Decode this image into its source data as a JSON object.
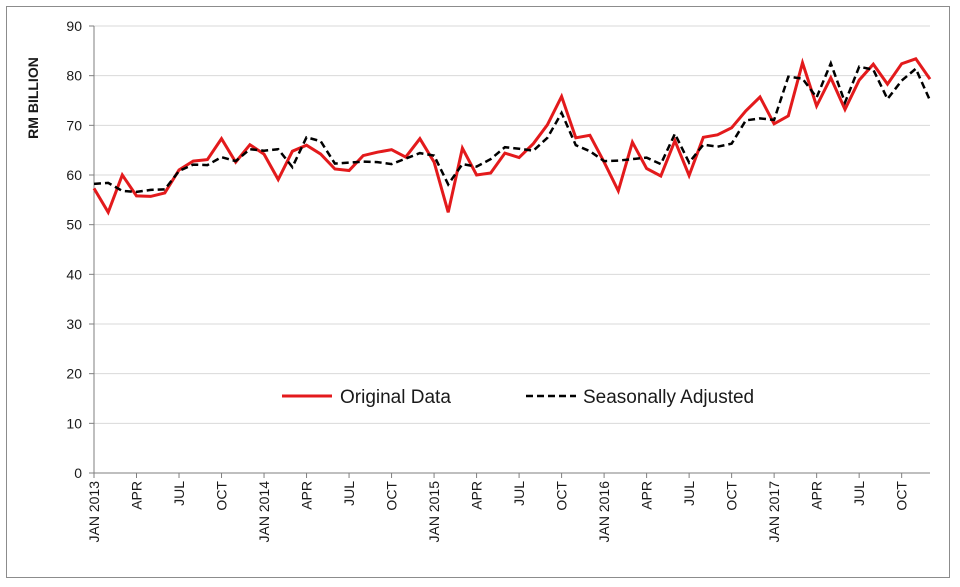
{
  "chart_data": {
    "type": "line",
    "ylabel": "RM BILLION",
    "xlabel": "",
    "title": "",
    "ylim": [
      0,
      90
    ],
    "yticks": [
      0,
      10,
      20,
      30,
      40,
      50,
      60,
      70,
      80,
      90
    ],
    "grid": "horizontal",
    "legend_position": "lower-center inside plot",
    "x_tick_labels": [
      {
        "index": 0,
        "label": "JAN 2013"
      },
      {
        "index": 3,
        "label": "APR"
      },
      {
        "index": 6,
        "label": "JUL"
      },
      {
        "index": 9,
        "label": "OCT"
      },
      {
        "index": 12,
        "label": "JAN 2014"
      },
      {
        "index": 15,
        "label": "APR"
      },
      {
        "index": 18,
        "label": "JUL"
      },
      {
        "index": 21,
        "label": "OCT"
      },
      {
        "index": 24,
        "label": "JAN 2015"
      },
      {
        "index": 27,
        "label": "APR"
      },
      {
        "index": 30,
        "label": "JUL"
      },
      {
        "index": 33,
        "label": "OCT"
      },
      {
        "index": 36,
        "label": "JAN 2016"
      },
      {
        "index": 39,
        "label": "APR"
      },
      {
        "index": 42,
        "label": "JUL"
      },
      {
        "index": 45,
        "label": "OCT"
      },
      {
        "index": 48,
        "label": "JAN 2017"
      },
      {
        "index": 51,
        "label": "APR"
      },
      {
        "index": 54,
        "label": "JUL"
      },
      {
        "index": 57,
        "label": "OCT"
      }
    ],
    "series": [
      {
        "name": "Original Data",
        "color": "#e31a1c",
        "style": "solid",
        "values": [
          57.3,
          52.5,
          60.0,
          55.8,
          55.7,
          56.4,
          61.0,
          62.8,
          63.1,
          67.3,
          62.6,
          66.1,
          64.2,
          59.1,
          64.8,
          66.0,
          64.2,
          61.2,
          60.9,
          63.9,
          64.6,
          65.1,
          63.6,
          67.3,
          62.6,
          52.5,
          65.4,
          60.0,
          60.4,
          64.4,
          63.5,
          66.3,
          70.1,
          75.8,
          67.5,
          68.0,
          62.6,
          56.8,
          66.6,
          61.3,
          59.8,
          66.9,
          59.9,
          67.6,
          68.1,
          69.5,
          72.9,
          75.7,
          70.3,
          71.9,
          82.6,
          73.9,
          79.6,
          73.2,
          79.1,
          82.3,
          78.3,
          82.4,
          83.4,
          79.3
        ]
      },
      {
        "name": "Seasonally Adjusted",
        "color": "#000000",
        "style": "dashed",
        "values": [
          58.2,
          58.4,
          56.8,
          56.6,
          57.0,
          57.1,
          60.8,
          62.1,
          62.0,
          63.6,
          62.8,
          65.2,
          64.9,
          65.2,
          61.6,
          67.6,
          66.8,
          62.3,
          62.5,
          62.7,
          62.6,
          62.2,
          63.3,
          64.4,
          63.9,
          58.1,
          62.2,
          61.7,
          63.2,
          65.6,
          65.3,
          64.9,
          67.5,
          72.5,
          66.0,
          64.8,
          62.8,
          62.9,
          63.2,
          63.5,
          62.2,
          68.3,
          62.5,
          66.1,
          65.7,
          66.3,
          71.0,
          71.4,
          71.1,
          79.8,
          79.4,
          75.6,
          82.5,
          74.6,
          81.8,
          81.2,
          75.3,
          79.0,
          81.4,
          75.0
        ]
      }
    ]
  }
}
